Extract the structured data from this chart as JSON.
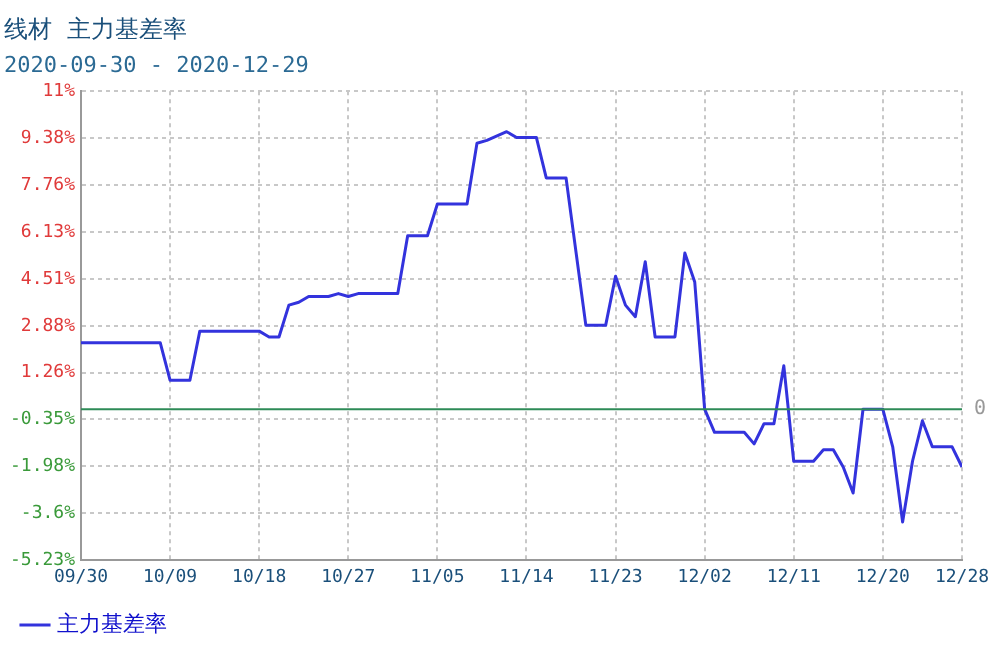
{
  "chart_data": {
    "type": "line",
    "title": "线材  主力基差率",
    "subtitle": "2020-09-30 - 2020-12-29",
    "x": [
      "2020-09-30",
      "2020-10-08",
      "2020-10-09",
      "2020-10-11",
      "2020-10-12",
      "2020-10-18",
      "2020-10-19",
      "2020-10-20",
      "2020-10-21",
      "2020-10-22",
      "2020-10-23",
      "2020-10-25",
      "2020-10-26",
      "2020-10-27",
      "2020-10-28",
      "2020-11-01",
      "2020-11-02",
      "2020-11-04",
      "2020-11-05",
      "2020-11-08",
      "2020-11-09",
      "2020-11-10",
      "2020-11-12",
      "2020-11-13",
      "2020-11-15",
      "2020-11-16",
      "2020-11-18",
      "2020-11-20",
      "2020-11-22",
      "2020-11-23",
      "2020-11-24",
      "2020-11-25",
      "2020-11-26",
      "2020-11-27",
      "2020-11-29",
      "2020-11-30",
      "2020-12-01",
      "2020-12-02",
      "2020-12-03",
      "2020-12-06",
      "2020-12-07",
      "2020-12-08",
      "2020-12-09",
      "2020-12-10",
      "2020-12-11",
      "2020-12-13",
      "2020-12-14",
      "2020-12-15",
      "2020-12-16",
      "2020-12-17",
      "2020-12-18",
      "2020-12-20",
      "2020-12-21",
      "2020-12-22",
      "2020-12-23",
      "2020-12-24",
      "2020-12-25",
      "2020-12-27",
      "2020-12-28"
    ],
    "series": [
      {
        "name": "主力基差率",
        "color": "#3333dd",
        "values": [
          2.3,
          2.3,
          1.0,
          1.0,
          2.7,
          2.7,
          2.5,
          2.5,
          3.6,
          3.7,
          3.9,
          3.9,
          4.0,
          3.9,
          4.0,
          4.0,
          6.0,
          6.0,
          7.1,
          7.1,
          9.2,
          9.3,
          9.6,
          9.4,
          9.4,
          8.0,
          8.0,
          2.9,
          2.9,
          4.6,
          3.6,
          3.2,
          5.1,
          2.5,
          2.5,
          5.4,
          4.4,
          0.0,
          -0.8,
          -0.8,
          -1.2,
          -0.5,
          -0.5,
          1.5,
          -1.8,
          -1.8,
          -1.4,
          -1.4,
          -2.0,
          -2.9,
          0.0,
          0.0,
          -1.3,
          -3.9,
          -1.8,
          -0.4,
          -1.3,
          -1.3,
          -2.0
        ]
      }
    ],
    "xlim": [
      "2020-09-30",
      "2020-12-28"
    ],
    "xticks": [
      {
        "value": "2020-09-30",
        "label": "09/30"
      },
      {
        "value": "2020-10-09",
        "label": "10/09"
      },
      {
        "value": "2020-10-18",
        "label": "10/18"
      },
      {
        "value": "2020-10-27",
        "label": "10/27"
      },
      {
        "value": "2020-11-05",
        "label": "11/05"
      },
      {
        "value": "2020-11-14",
        "label": "11/14"
      },
      {
        "value": "2020-11-23",
        "label": "11/23"
      },
      {
        "value": "2020-12-02",
        "label": "12/02"
      },
      {
        "value": "2020-12-11",
        "label": "12/11"
      },
      {
        "value": "2020-12-20",
        "label": "12/20"
      },
      {
        "value": "2020-12-28",
        "label": "12/28"
      }
    ],
    "ylim": [
      -5.23,
      11
    ],
    "yticks": [
      {
        "value": -5.23,
        "label": "-5.23%"
      },
      {
        "value": -3.6,
        "label": "-3.6%"
      },
      {
        "value": -1.98,
        "label": "-1.98%"
      },
      {
        "value": -0.35,
        "label": "-0.35%"
      },
      {
        "value": 1.26,
        "label": "1.26%"
      },
      {
        "value": 2.88,
        "label": "2.88%"
      },
      {
        "value": 4.51,
        "label": "4.51%"
      },
      {
        "value": 6.13,
        "label": "6.13%"
      },
      {
        "value": 7.76,
        "label": "7.76%"
      },
      {
        "value": 9.38,
        "label": "9.38%"
      },
      {
        "value": 11,
        "label": "11%"
      }
    ],
    "ref_lines": [
      {
        "axis": "y",
        "value": 0,
        "label": "0",
        "color": "#2e8b57"
      }
    ],
    "grid": true,
    "legend": "bottom left",
    "marker": "none",
    "line_style": "solid"
  }
}
